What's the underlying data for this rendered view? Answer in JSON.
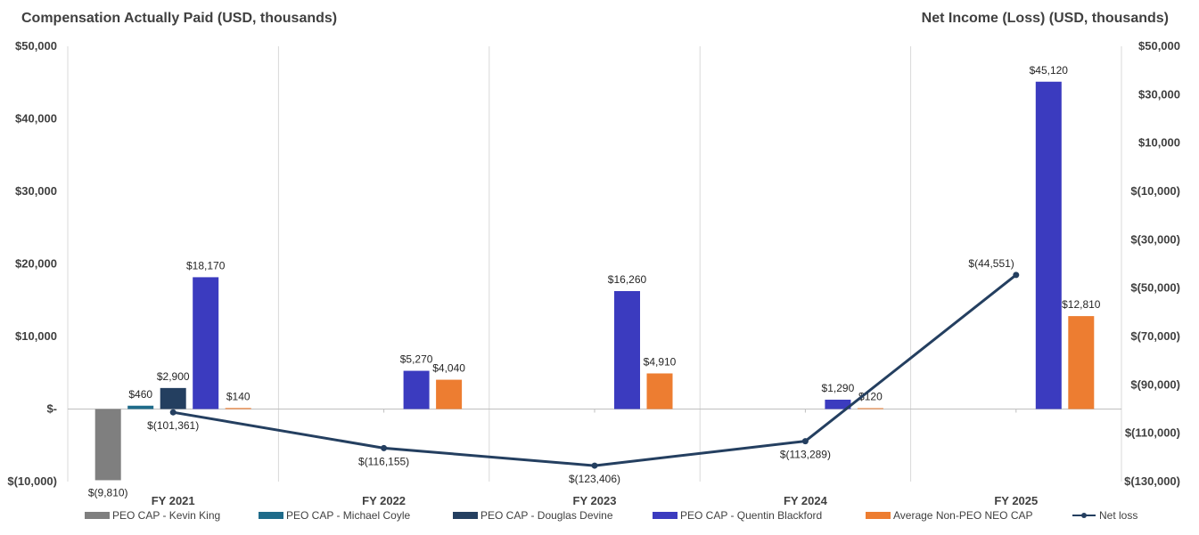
{
  "titles": {
    "left": "Compensation Actually Paid (USD, thousands)",
    "right": "Net Income (Loss) (USD, thousands)"
  },
  "colors": {
    "kevin": "#7f7f7f",
    "michael": "#1f6b8a",
    "douglas": "#243f60",
    "quentin": "#3b3bbf",
    "nonpeo": "#ed7d31",
    "netloss": "#243f60",
    "grid": "#d9d9d9",
    "axis": "#bfbfbf"
  },
  "chart_data": {
    "type": "bar",
    "categories": [
      "FY 2021",
      "FY 2022",
      "FY 2023",
      "FY 2024",
      "FY 2025"
    ],
    "left_axis": {
      "title": "Compensation Actually Paid (USD, thousands)",
      "ylim": [
        -10000,
        50000
      ],
      "ticks": [
        50000,
        40000,
        30000,
        20000,
        10000,
        0,
        -10000
      ],
      "tick_labels": [
        "$50,000",
        "$40,000",
        "$30,000",
        "$20,000",
        "$10,000",
        "$-",
        "$(10,000)"
      ]
    },
    "right_axis": {
      "title": "Net Income (Loss) (USD, thousands)",
      "ylim": [
        -130000,
        50000
      ],
      "ticks": [
        50000,
        30000,
        10000,
        -10000,
        -30000,
        -50000,
        -70000,
        -90000,
        -110000,
        -130000
      ],
      "tick_labels": [
        "$50,000",
        "$30,000",
        "$10,000",
        "$(10,000)",
        "$(30,000)",
        "$(50,000)",
        "$(70,000)",
        "$(90,000)",
        "$(110,000)",
        "$(130,000)"
      ]
    },
    "grid": "vertical",
    "legend_position": "bottom",
    "series": [
      {
        "name": "PEO CAP - Kevin King",
        "color_key": "kevin",
        "values": [
          -9810,
          null,
          null,
          null,
          null
        ],
        "labels": [
          "$(9,810)",
          "",
          "",
          "",
          ""
        ]
      },
      {
        "name": "PEO CAP - Michael Coyle",
        "color_key": "michael",
        "values": [
          460,
          null,
          null,
          null,
          null
        ],
        "labels": [
          "$460",
          "",
          "",
          "",
          ""
        ]
      },
      {
        "name": "PEO CAP - Douglas Devine",
        "color_key": "douglas",
        "values": [
          2900,
          null,
          null,
          null,
          null
        ],
        "labels": [
          "$2,900",
          "",
          "",
          "",
          ""
        ]
      },
      {
        "name": "PEO CAP - Quentin Blackford",
        "color_key": "quentin",
        "values": [
          18170,
          5270,
          16260,
          1290,
          45120
        ],
        "labels": [
          "$18,170",
          "$5,270",
          "$16,260",
          "$1,290",
          "$45,120"
        ]
      },
      {
        "name": "Average Non-PEO NEO CAP",
        "color_key": "nonpeo",
        "values": [
          140,
          4040,
          4910,
          120,
          12810
        ],
        "labels": [
          "$140",
          "$4,040",
          "$4,910",
          "$120",
          "$12,810"
        ]
      }
    ],
    "line_series": {
      "name": "Net loss",
      "color_key": "netloss",
      "axis": "right",
      "values": [
        -101361,
        -116155,
        -123406,
        -113289,
        -44551
      ],
      "labels": [
        "$(101,361)",
        "$(116,155)",
        "$(123,406)",
        "$(113,289)",
        "$(44,551)"
      ]
    }
  }
}
